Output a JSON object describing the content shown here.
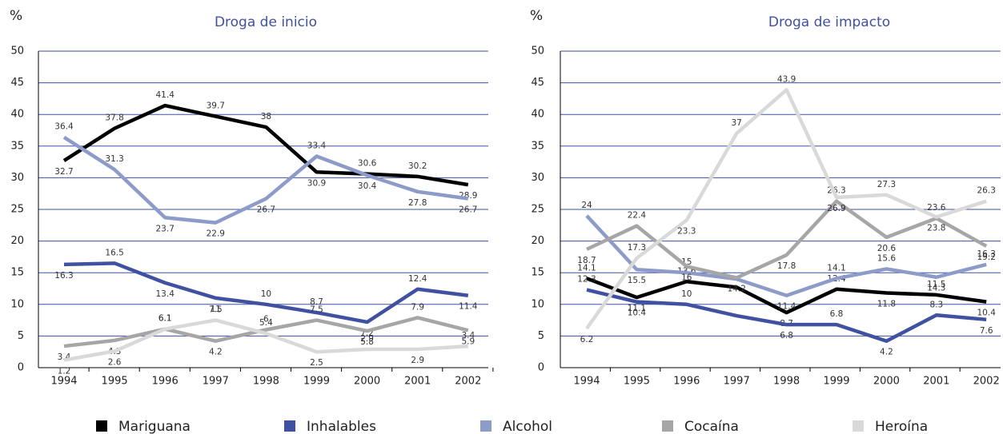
{
  "chart_data": [
    {
      "type": "line",
      "title": "Droga de inicio",
      "y_label": "%",
      "categories": [
        "1994",
        "1995",
        "1996",
        "1997",
        "1998",
        "1999",
        "2000",
        "2001",
        "2002"
      ],
      "ylim": [
        0,
        50
      ],
      "yticks": [
        0,
        5,
        10,
        15,
        20,
        25,
        30,
        35,
        40,
        45,
        50
      ],
      "grid": true,
      "series": [
        {
          "name": "Mariguana",
          "color": "#000000",
          "values": [
            32.7,
            37.8,
            41.4,
            39.7,
            38,
            30.9,
            30.6,
            30.2,
            28.9
          ]
        },
        {
          "name": "Inhalables",
          "color": "#3f51a0",
          "values": [
            16.3,
            16.5,
            13.4,
            11,
            10,
            8.7,
            7.2,
            12.4,
            11.4
          ]
        },
        {
          "name": "Alcohol",
          "color": "#8d9bc9",
          "values": [
            36.4,
            31.3,
            23.7,
            22.9,
            26.7,
            33.4,
            30.4,
            27.8,
            26.7
          ]
        },
        {
          "name": "Cocaína",
          "color": "#a6a6a6",
          "values": [
            3.4,
            4.3,
            6.1,
            4.2,
            6,
            7.5,
            5.8,
            7.9,
            5.9
          ]
        },
        {
          "name": "Heroína",
          "color": "#d9d9d9",
          "values": [
            1.2,
            2.6,
            6.1,
            7.5,
            5.4,
            2.5,
            2.9,
            2.9,
            3.4
          ]
        }
      ]
    },
    {
      "type": "line",
      "title": "Droga de impacto",
      "y_label": "%",
      "categories": [
        "1994",
        "1995",
        "1996",
        "1997",
        "1998",
        "1999",
        "2000",
        "2001",
        "2002"
      ],
      "ylim": [
        0,
        50
      ],
      "yticks": [
        0,
        5,
        10,
        15,
        20,
        25,
        30,
        35,
        40,
        45,
        50
      ],
      "grid": true,
      "series": [
        {
          "name": "Mariguana",
          "color": "#000000",
          "values": [
            14.1,
            11.1,
            13.6,
            12.7,
            8.7,
            12.4,
            11.8,
            11.5,
            10.4
          ],
          "value_labels": [
            "14.1",
            "11.1",
            "13.6",
            null,
            "8.7",
            "12.4",
            "11.8",
            "11.5",
            "10.4"
          ]
        },
        {
          "name": "Inhalables",
          "color": "#3f51a0",
          "values": [
            12.3,
            10.4,
            10,
            8.2,
            6.8,
            6.8,
            4.2,
            8.3,
            7.6
          ],
          "value_labels": [
            "12.3",
            "10.4",
            "10",
            null,
            "6.8",
            "6.8",
            "4.2",
            "8.3",
            "7.6"
          ]
        },
        {
          "name": "Alcohol",
          "color": "#8d9bc9",
          "values": [
            24,
            15.5,
            15,
            14,
            11.4,
            14.1,
            15.6,
            14.3,
            16.3
          ],
          "value_labels": [
            "24",
            "15.5",
            "15",
            null,
            "11.4",
            "14.1",
            "15.6",
            "14.3",
            "16.3"
          ]
        },
        {
          "name": "Cocaína",
          "color": "#a6a6a6",
          "values": [
            18.7,
            22.4,
            16,
            14.2,
            17.8,
            26.3,
            20.6,
            23.6,
            19.2
          ]
        },
        {
          "name": "Heroína",
          "color": "#d9d9d9",
          "values": [
            6.2,
            17.3,
            23.3,
            37,
            43.9,
            26.9,
            27.3,
            23.8,
            26.3
          ]
        }
      ]
    }
  ]
}
